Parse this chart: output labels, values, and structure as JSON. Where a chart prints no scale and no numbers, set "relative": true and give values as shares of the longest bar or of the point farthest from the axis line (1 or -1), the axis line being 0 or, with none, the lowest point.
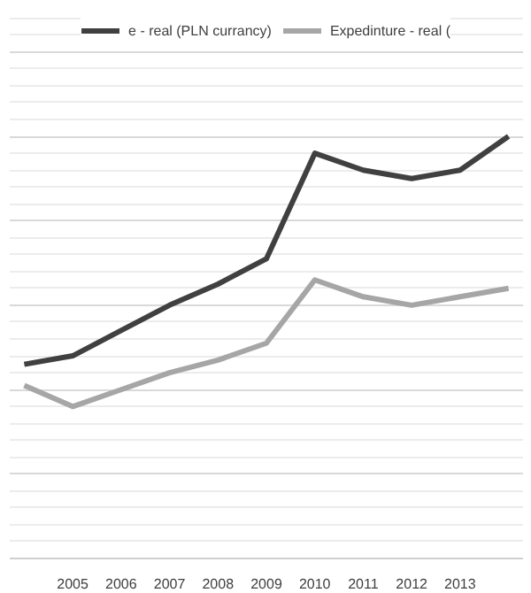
{
  "chart_data": {
    "type": "line",
    "relative": true,
    "categories": [
      null,
      "2005",
      "2006",
      "2007",
      "2008",
      "2009",
      "2010",
      "2011",
      "2012",
      "2013",
      null
    ],
    "series": [
      {
        "name": "e - real (PLN currancy)",
        "color": "#404040",
        "values": [
          0.46,
          0.48,
          0.54,
          0.6,
          0.65,
          0.71,
          0.96,
          0.92,
          0.9,
          0.92,
          1
        ]
      },
      {
        "name": "Expedinture - real (",
        "color": "#a6a6a6",
        "values": [
          0.41,
          0.36,
          0.4,
          0.44,
          0.47,
          0.51,
          0.66,
          0.62,
          0.6,
          0.62,
          0.64
        ]
      }
    ],
    "grid": "y",
    "legend": "top",
    "line_style": "solid",
    "marker": "none"
  }
}
